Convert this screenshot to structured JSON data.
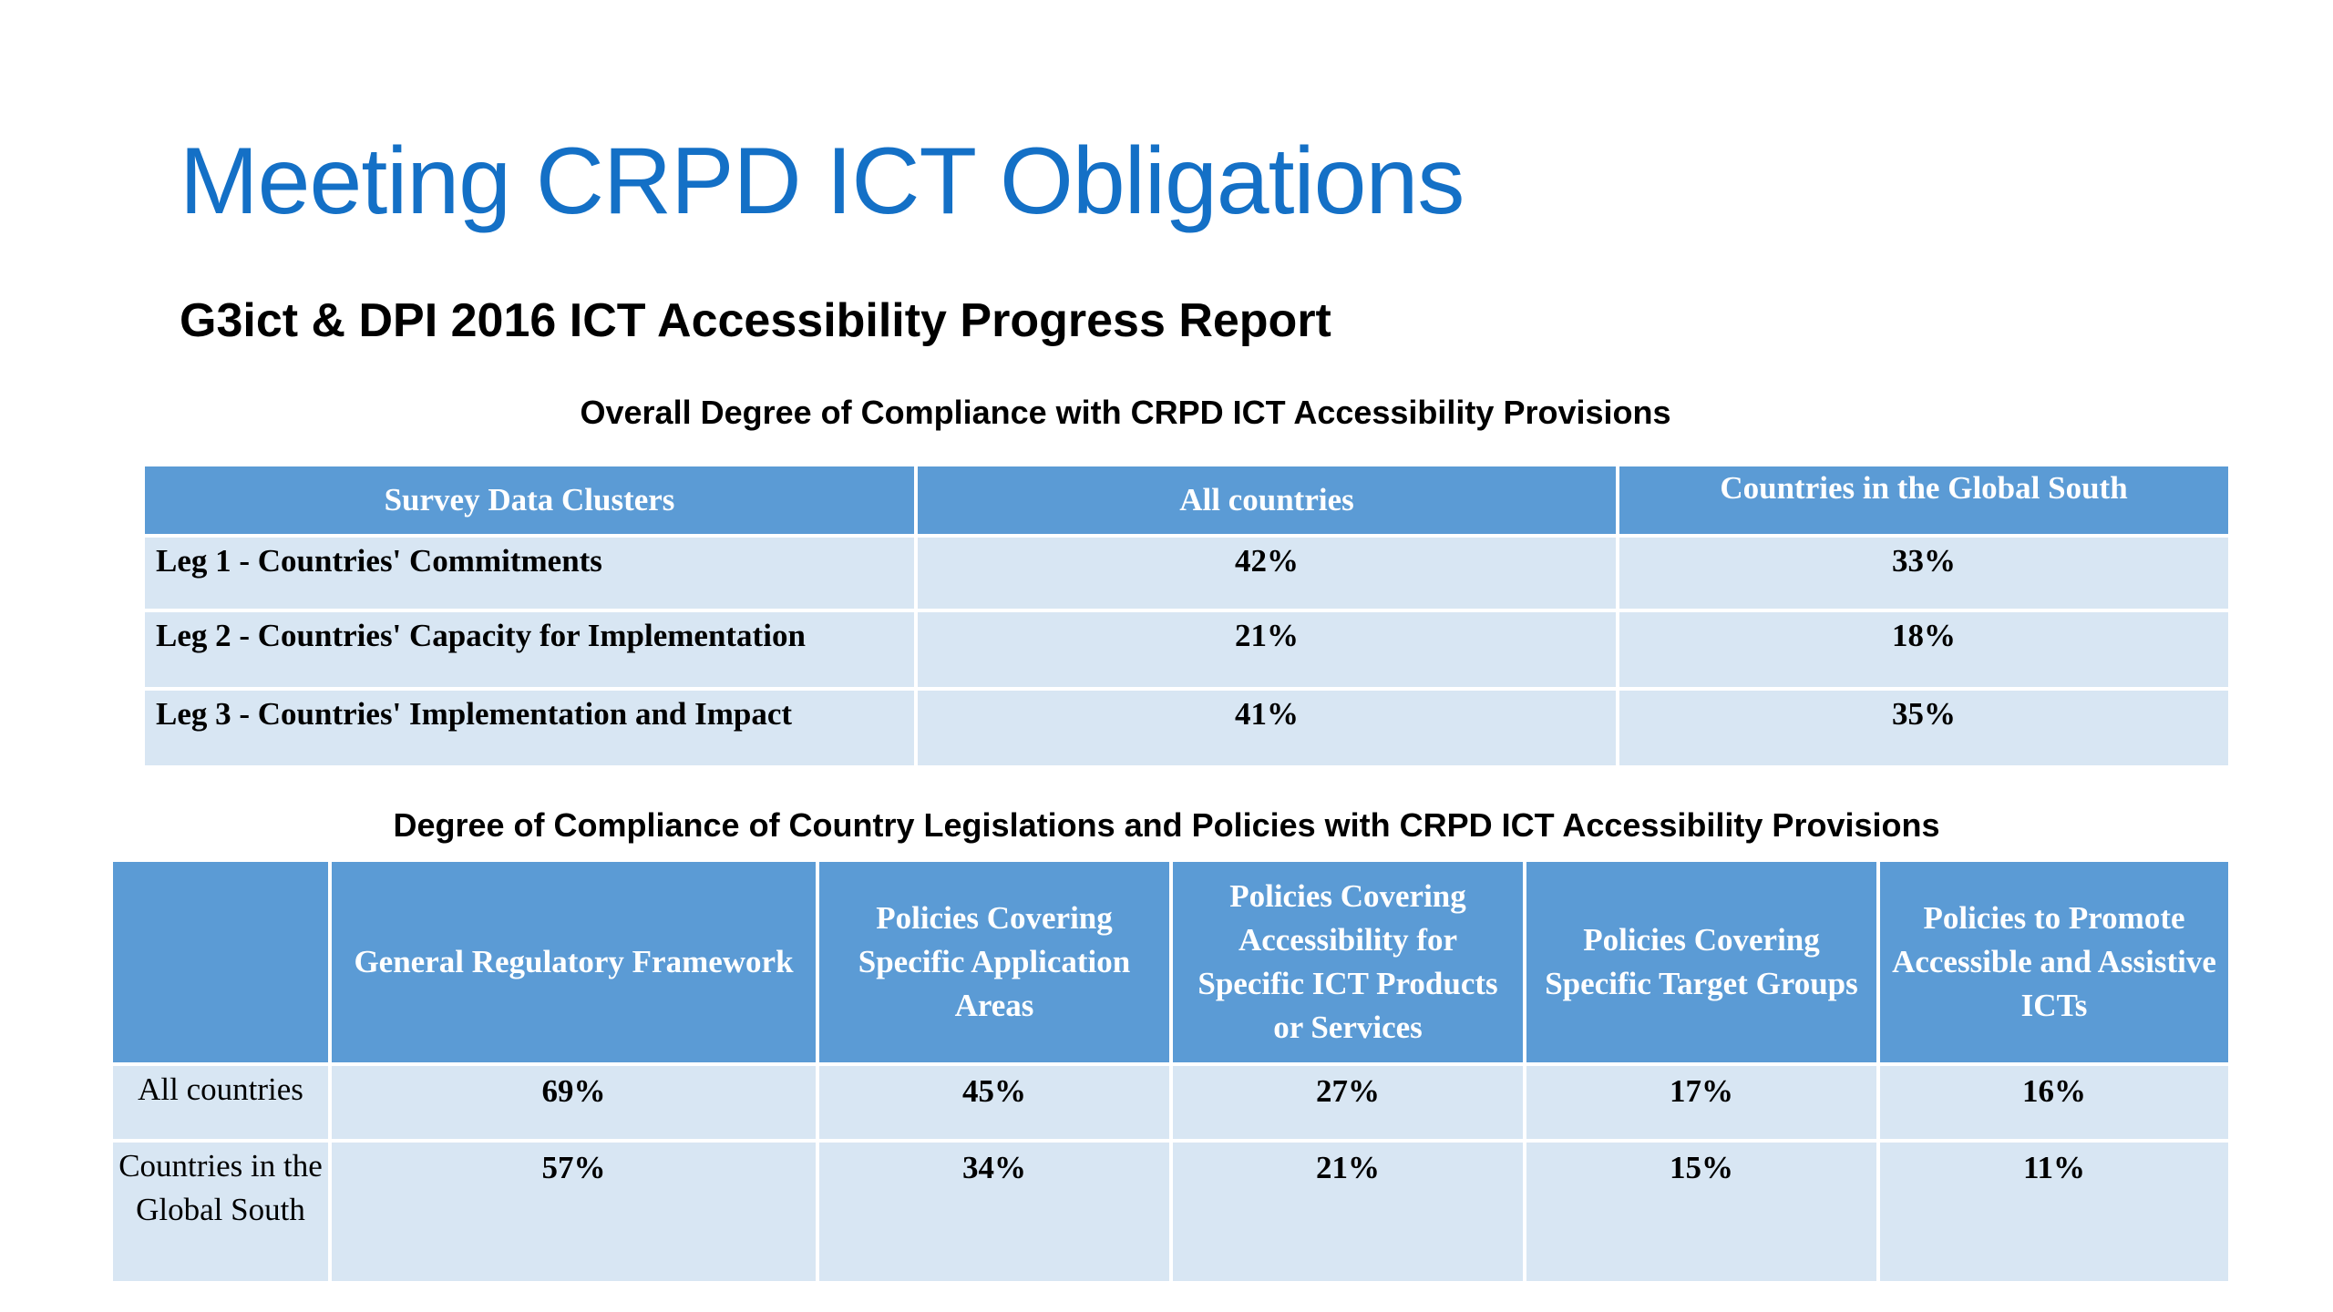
{
  "title": "Meeting CRPD ICT Obligations",
  "subtitle": "G3ict & DPI 2016 ICT Accessibility Progress Report",
  "table1": {
    "caption": "Overall Degree of Compliance with CRPD ICT Accessibility Provisions",
    "headers": [
      "Survey Data Clusters",
      "All countries",
      "Countries in the Global South"
    ],
    "rows": [
      {
        "label": "Leg 1 -  Countries'  Commitments",
        "all": "42%",
        "south": "33%"
      },
      {
        "label": "Leg 2 - Countries' Capacity for Implementation",
        "all": "21%",
        "south": "18%"
      },
      {
        "label": "Leg 3 - Countries' Implementation and Impact",
        "all": "41%",
        "south": "35%"
      }
    ]
  },
  "table2": {
    "caption": "Degree of Compliance of Country Legislations and Policies with CRPD ICT Accessibility Provisions",
    "headers": [
      "",
      "General Regulatory Framework",
      "Policies Covering Specific Application Areas",
      "Policies Covering Accessibility for Specific ICT Products or Services",
      "Policies Covering Specific Target Groups",
      "Policies to Promote Accessible and Assistive ICTs"
    ],
    "rows": [
      {
        "label": "All countries",
        "values": [
          "69%",
          "45%",
          "27%",
          "17%",
          "16%"
        ]
      },
      {
        "label": "Countries in the Global South",
        "values": [
          "57%",
          "34%",
          "21%",
          "15%",
          "11%"
        ]
      }
    ]
  }
}
